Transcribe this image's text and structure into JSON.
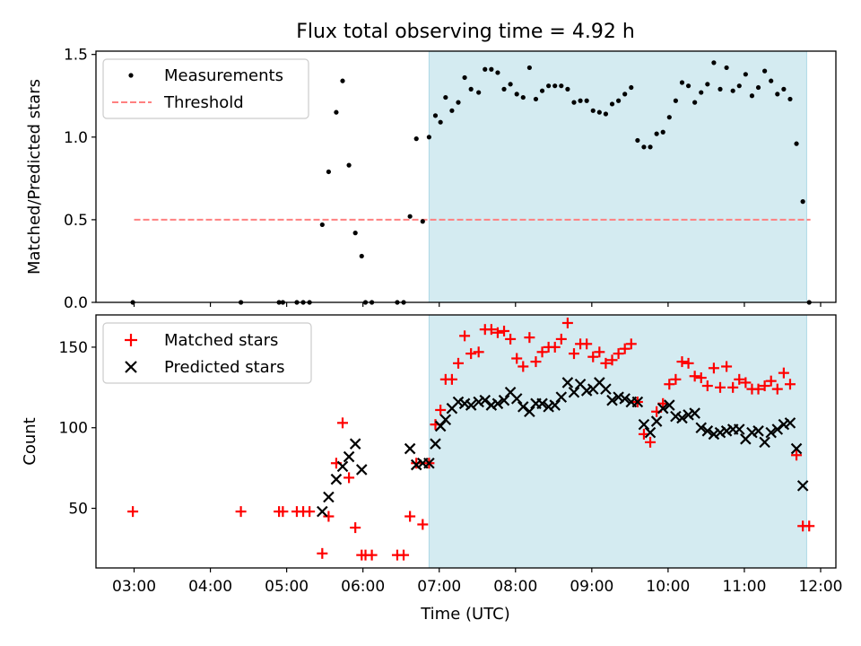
{
  "chart_data": [
    {
      "type": "scatter",
      "title": "Flux total observing time = 4.92 h",
      "xlabel": "",
      "ylabel": "Matched/Predicted stars",
      "ylim": [
        0,
        1.52
      ],
      "xlim": [
        "02:30",
        "12:12"
      ],
      "yticks": [
        "0.0",
        "0.5",
        "1.0",
        "1.5"
      ],
      "ytick_values": [
        0,
        0.5,
        1.0,
        1.5
      ],
      "xticks": [
        "03:00",
        "04:00",
        "05:00",
        "06:00",
        "07:00",
        "08:00",
        "09:00",
        "10:00",
        "11:00",
        "12:00"
      ],
      "legend_position": "upper-left",
      "shaded_interval": [
        "06:52",
        "11:49"
      ],
      "threshold": {
        "value": 0.5,
        "x_range": [
          "03:00",
          "11:52"
        ],
        "color": "#ff8080",
        "style": "dashed"
      },
      "series": [
        {
          "name": "Measurements",
          "marker": "dot",
          "color": "#000000",
          "points": [
            [
              "02:59",
              0.0
            ],
            [
              "04:24",
              0.0
            ],
            [
              "04:54",
              0.0
            ],
            [
              "04:57",
              0.0
            ],
            [
              "05:08",
              0.0
            ],
            [
              "05:13",
              0.0
            ],
            [
              "05:18",
              0.0
            ],
            [
              "05:28",
              0.47
            ],
            [
              "05:33",
              0.79
            ],
            [
              "05:39",
              1.15
            ],
            [
              "05:44",
              1.34
            ],
            [
              "05:49",
              0.83
            ],
            [
              "05:54",
              0.42
            ],
            [
              "05:59",
              0.28
            ],
            [
              "06:02",
              0.0
            ],
            [
              "06:07",
              0.0
            ],
            [
              "06:27",
              0.0
            ],
            [
              "06:32",
              0.0
            ],
            [
              "06:37",
              0.52
            ],
            [
              "06:42",
              0.99
            ],
            [
              "06:47",
              0.49
            ],
            [
              "06:52",
              1.0
            ],
            [
              "06:57",
              1.13
            ],
            [
              "07:01",
              1.09
            ],
            [
              "07:05",
              1.24
            ],
            [
              "07:10",
              1.16
            ],
            [
              "07:15",
              1.21
            ],
            [
              "07:20",
              1.36
            ],
            [
              "07:25",
              1.29
            ],
            [
              "07:31",
              1.27
            ],
            [
              "07:36",
              1.41
            ],
            [
              "07:41",
              1.41
            ],
            [
              "07:46",
              1.39
            ],
            [
              "07:51",
              1.29
            ],
            [
              "07:56",
              1.32
            ],
            [
              "08:01",
              1.26
            ],
            [
              "08:06",
              1.24
            ],
            [
              "08:11",
              1.42
            ],
            [
              "08:16",
              1.23
            ],
            [
              "08:21",
              1.28
            ],
            [
              "08:26",
              1.31
            ],
            [
              "08:31",
              1.31
            ],
            [
              "08:36",
              1.31
            ],
            [
              "08:41",
              1.29
            ],
            [
              "08:46",
              1.21
            ],
            [
              "08:51",
              1.22
            ],
            [
              "08:56",
              1.22
            ],
            [
              "09:01",
              1.16
            ],
            [
              "09:06",
              1.15
            ],
            [
              "09:11",
              1.14
            ],
            [
              "09:16",
              1.2
            ],
            [
              "09:21",
              1.22
            ],
            [
              "09:26",
              1.26
            ],
            [
              "09:31",
              1.3
            ],
            [
              "09:36",
              0.98
            ],
            [
              "09:41",
              0.94
            ],
            [
              "09:46",
              0.94
            ],
            [
              "09:51",
              1.02
            ],
            [
              "09:56",
              1.03
            ],
            [
              "10:01",
              1.12
            ],
            [
              "10:06",
              1.22
            ],
            [
              "10:11",
              1.33
            ],
            [
              "10:16",
              1.31
            ],
            [
              "10:21",
              1.21
            ],
            [
              "10:26",
              1.27
            ],
            [
              "10:31",
              1.32
            ],
            [
              "10:36",
              1.45
            ],
            [
              "10:41",
              1.29
            ],
            [
              "10:46",
              1.42
            ],
            [
              "10:51",
              1.28
            ],
            [
              "10:56",
              1.31
            ],
            [
              "11:01",
              1.38
            ],
            [
              "11:06",
              1.25
            ],
            [
              "11:11",
              1.3
            ],
            [
              "11:16",
              1.4
            ],
            [
              "11:21",
              1.34
            ],
            [
              "11:26",
              1.26
            ],
            [
              "11:31",
              1.29
            ],
            [
              "11:36",
              1.23
            ],
            [
              "11:41",
              0.96
            ],
            [
              "11:46",
              0.61
            ],
            [
              "11:51",
              0.0
            ]
          ]
        },
        {
          "name": "Threshold",
          "style": "dashed-line",
          "color": "#ff8080"
        }
      ]
    },
    {
      "type": "scatter",
      "title": "",
      "xlabel": "Time (UTC)",
      "ylabel": "Count",
      "ylim": [
        13,
        170
      ],
      "xlim": [
        "02:30",
        "12:12"
      ],
      "yticks": [
        "50",
        "100",
        "150"
      ],
      "ytick_values": [
        50,
        100,
        150
      ],
      "xticks": [
        "03:00",
        "04:00",
        "05:00",
        "06:00",
        "07:00",
        "08:00",
        "09:00",
        "10:00",
        "11:00",
        "12:00"
      ],
      "legend_position": "upper-left",
      "shaded_interval": [
        "06:52",
        "11:49"
      ],
      "series": [
        {
          "name": "Matched stars",
          "marker": "plus",
          "color": "#ff0000",
          "points": [
            [
              "02:59",
              48
            ],
            [
              "04:24",
              48
            ],
            [
              "04:54",
              48
            ],
            [
              "04:57",
              48
            ],
            [
              "05:08",
              48
            ],
            [
              "05:13",
              48
            ],
            [
              "05:18",
              48
            ],
            [
              "05:28",
              22
            ],
            [
              "05:33",
              45
            ],
            [
              "05:39",
              78
            ],
            [
              "05:44",
              103
            ],
            [
              "05:49",
              69
            ],
            [
              "05:54",
              38
            ],
            [
              "05:59",
              21
            ],
            [
              "06:02",
              21
            ],
            [
              "06:07",
              21
            ],
            [
              "06:27",
              21
            ],
            [
              "06:32",
              21
            ],
            [
              "06:37",
              45
            ],
            [
              "06:42",
              78
            ],
            [
              "06:47",
              40
            ],
            [
              "06:52",
              78
            ],
            [
              "06:57",
              102
            ],
            [
              "07:01",
              111
            ],
            [
              "07:05",
              130
            ],
            [
              "07:10",
              130
            ],
            [
              "07:15",
              140
            ],
            [
              "07:20",
              157
            ],
            [
              "07:25",
              146
            ],
            [
              "07:31",
              147
            ],
            [
              "07:36",
              161
            ],
            [
              "07:41",
              161
            ],
            [
              "07:46",
              159
            ],
            [
              "07:51",
              160
            ],
            [
              "07:56",
              155
            ],
            [
              "08:01",
              143
            ],
            [
              "08:06",
              138
            ],
            [
              "08:11",
              156
            ],
            [
              "08:16",
              141
            ],
            [
              "08:21",
              147
            ],
            [
              "08:26",
              150
            ],
            [
              "08:31",
              150
            ],
            [
              "08:36",
              155
            ],
            [
              "08:41",
              165
            ],
            [
              "08:46",
              146
            ],
            [
              "08:51",
              152
            ],
            [
              "08:56",
              152
            ],
            [
              "09:01",
              144
            ],
            [
              "09:06",
              147
            ],
            [
              "09:11",
              140
            ],
            [
              "09:16",
              142
            ],
            [
              "09:21",
              146
            ],
            [
              "09:26",
              149
            ],
            [
              "09:31",
              152
            ],
            [
              "09:36",
              116
            ],
            [
              "09:41",
              96
            ],
            [
              "09:46",
              91
            ],
            [
              "09:51",
              110
            ],
            [
              "09:56",
              115
            ],
            [
              "10:01",
              127
            ],
            [
              "10:06",
              130
            ],
            [
              "10:11",
              141
            ],
            [
              "10:16",
              140
            ],
            [
              "10:21",
              132
            ],
            [
              "10:26",
              131
            ],
            [
              "10:31",
              126
            ],
            [
              "10:36",
              137
            ],
            [
              "10:41",
              125
            ],
            [
              "10:46",
              138
            ],
            [
              "10:51",
              125
            ],
            [
              "10:56",
              130
            ],
            [
              "11:01",
              128
            ],
            [
              "11:06",
              124
            ],
            [
              "11:11",
              124
            ],
            [
              "11:16",
              126
            ],
            [
              "11:21",
              129
            ],
            [
              "11:26",
              124
            ],
            [
              "11:31",
              134
            ],
            [
              "11:36",
              127
            ],
            [
              "11:41",
              83
            ],
            [
              "11:46",
              39
            ],
            [
              "11:51",
              39
            ]
          ]
        },
        {
          "name": "Predicted stars",
          "marker": "x",
          "color": "#000000",
          "points": [
            [
              "05:28",
              48
            ],
            [
              "05:33",
              57
            ],
            [
              "05:39",
              68
            ],
            [
              "05:44",
              76
            ],
            [
              "05:49",
              82
            ],
            [
              "05:54",
              90
            ],
            [
              "05:59",
              74
            ],
            [
              "06:37",
              87
            ],
            [
              "06:42",
              77
            ],
            [
              "06:47",
              78
            ],
            [
              "06:52",
              78
            ],
            [
              "06:57",
              90
            ],
            [
              "07:01",
              101
            ],
            [
              "07:05",
              105
            ],
            [
              "07:10",
              112
            ],
            [
              "07:15",
              116
            ],
            [
              "07:20",
              115
            ],
            [
              "07:25",
              114
            ],
            [
              "07:31",
              116
            ],
            [
              "07:36",
              117
            ],
            [
              "07:41",
              114
            ],
            [
              "07:46",
              115
            ],
            [
              "07:51",
              117
            ],
            [
              "07:56",
              122
            ],
            [
              "08:01",
              118
            ],
            [
              "08:06",
              113
            ],
            [
              "08:11",
              110
            ],
            [
              "08:16",
              115
            ],
            [
              "08:21",
              115
            ],
            [
              "08:26",
              113
            ],
            [
              "08:31",
              114
            ],
            [
              "08:36",
              119
            ],
            [
              "08:41",
              128
            ],
            [
              "08:46",
              122
            ],
            [
              "08:51",
              127
            ],
            [
              "08:56",
              123
            ],
            [
              "09:01",
              124
            ],
            [
              "09:06",
              128
            ],
            [
              "09:11",
              124
            ],
            [
              "09:16",
              117
            ],
            [
              "09:21",
              119
            ],
            [
              "09:26",
              118
            ],
            [
              "09:31",
              116
            ],
            [
              "09:36",
              116
            ],
            [
              "09:41",
              102
            ],
            [
              "09:46",
              97
            ],
            [
              "09:51",
              104
            ],
            [
              "09:56",
              112
            ],
            [
              "10:01",
              114
            ],
            [
              "10:06",
              107
            ],
            [
              "10:11",
              106
            ],
            [
              "10:16",
              108
            ],
            [
              "10:21",
              109
            ],
            [
              "10:26",
              100
            ],
            [
              "10:31",
              98
            ],
            [
              "10:36",
              96
            ],
            [
              "10:41",
              97
            ],
            [
              "10:46",
              98
            ],
            [
              "10:51",
              99
            ],
            [
              "10:56",
              99
            ],
            [
              "11:01",
              93
            ],
            [
              "11:06",
              97
            ],
            [
              "11:11",
              98
            ],
            [
              "11:16",
              91
            ],
            [
              "11:21",
              97
            ],
            [
              "11:26",
              99
            ],
            [
              "11:31",
              102
            ],
            [
              "11:36",
              103
            ],
            [
              "11:41",
              87
            ],
            [
              "11:46",
              64
            ]
          ]
        }
      ]
    }
  ],
  "colors": {
    "shade": "#d4ebf1",
    "shade_edge": "#add8e6"
  }
}
